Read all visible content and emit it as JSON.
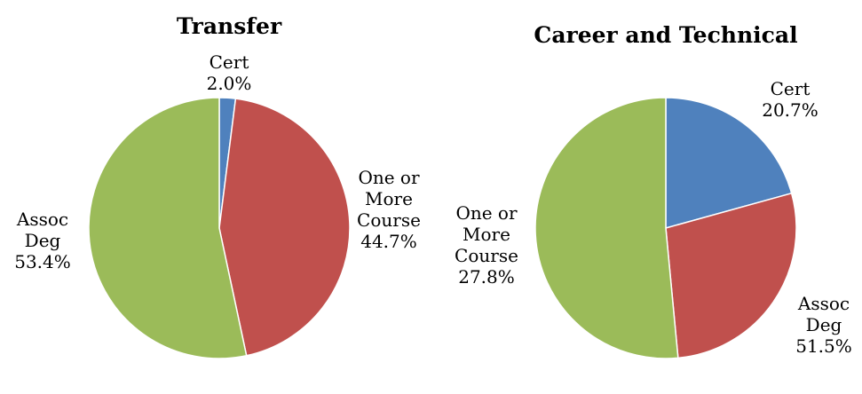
{
  "chart_data": [
    {
      "type": "pie",
      "title": "Transfer",
      "categories": [
        "Cert",
        "One or More Course",
        "Assoc Deg"
      ],
      "values": [
        2.0,
        44.7,
        53.4
      ],
      "value_labels": [
        "2.0%",
        "44.7%",
        "53.4%"
      ],
      "colors": [
        "#4f81bd",
        "#c0504d",
        "#9bbb59"
      ]
    },
    {
      "type": "pie",
      "title": "Career and Technical",
      "categories": [
        "Cert",
        "One or More Course",
        "Assoc Deg"
      ],
      "values": [
        20.7,
        27.8,
        51.5
      ],
      "value_labels": [
        "20.7%",
        "27.8%",
        "51.5%"
      ],
      "colors": [
        "#4f81bd",
        "#c0504d",
        "#9bbb59"
      ]
    }
  ]
}
